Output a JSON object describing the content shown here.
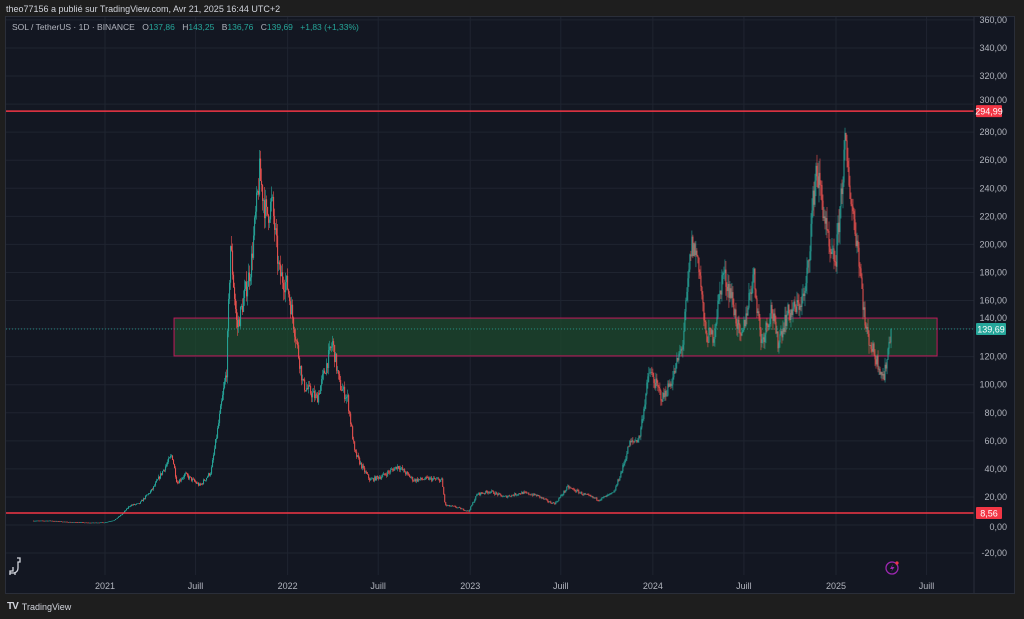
{
  "header": {
    "published": "theo77156 a publié sur TradingView.com, Avr 21, 2025 16:44 UTC+2"
  },
  "legend": {
    "symbol": "SOL / TetherUS · 1D · BINANCE",
    "o_label": "O",
    "o": "137,86",
    "h_label": "H",
    "h": "143,25",
    "b_label": "B",
    "b": "136,76",
    "c_label": "C",
    "c": "139,69",
    "change": "+1,83 (+1,33%)"
  },
  "brand": {
    "logo": "TV",
    "name": "TradingView"
  },
  "colors": {
    "up": "#26a69a",
    "down": "#ef5350",
    "level": "#f23645",
    "zone_fill": "#1e4a2e",
    "zone_border": "#c2185b",
    "bg": "#131722",
    "grid": "#1f2430"
  },
  "chart_data": {
    "type": "candlestick",
    "title": "SOL / TetherUS · 1D · BINANCE",
    "ylim": [
      -30,
      362
    ],
    "y_ticks": [
      -20,
      0,
      20,
      40,
      60,
      80,
      100,
      120,
      140,
      160,
      180,
      200,
      220,
      240,
      260,
      280,
      300,
      320,
      340,
      360
    ],
    "y_tick_labels": [
      "-20,00",
      "0,00",
      "20,00",
      "40,00",
      "60,00",
      "80,00",
      "100,00",
      "120,00",
      "140,00",
      "160,00",
      "180,00",
      "200,00",
      "220,00",
      "240,00",
      "260,00",
      "280,00",
      "300,00",
      "320,00",
      "340,00",
      "360,00"
    ],
    "x_ticks": [
      {
        "date": "2021-01-01",
        "label": "2021"
      },
      {
        "date": "2021-07-01",
        "label": "Juill"
      },
      {
        "date": "2022-01-01",
        "label": "2022"
      },
      {
        "date": "2022-07-01",
        "label": "Juill"
      },
      {
        "date": "2023-01-01",
        "label": "2023"
      },
      {
        "date": "2023-07-01",
        "label": "Juill"
      },
      {
        "date": "2024-01-01",
        "label": "2024"
      },
      {
        "date": "2024-07-01",
        "label": "Juill"
      },
      {
        "date": "2025-01-01",
        "label": "2025"
      },
      {
        "date": "2025-07-01",
        "label": "Juill"
      }
    ],
    "approx_close_keypoints": [
      [
        "2020-08-11",
        3
      ],
      [
        "2020-09-15",
        3
      ],
      [
        "2020-10-15",
        2.2
      ],
      [
        "2020-12-01",
        1.6
      ],
      [
        "2021-01-01",
        1.8
      ],
      [
        "2021-01-20",
        3.5
      ],
      [
        "2021-02-05",
        8
      ],
      [
        "2021-02-20",
        14
      ],
      [
        "2021-03-10",
        15
      ],
      [
        "2021-04-05",
        25
      ],
      [
        "2021-05-15",
        50
      ],
      [
        "2021-05-25",
        30
      ],
      [
        "2021-06-10",
        36
      ],
      [
        "2021-07-10",
        28
      ],
      [
        "2021-08-01",
        38
      ],
      [
        "2021-08-15",
        70
      ],
      [
        "2021-09-01",
        110
      ],
      [
        "2021-09-09",
        200
      ],
      [
        "2021-09-22",
        140
      ],
      [
        "2021-10-05",
        160
      ],
      [
        "2021-10-20",
        185
      ],
      [
        "2021-11-06",
        250
      ],
      [
        "2021-11-20",
        220
      ],
      [
        "2021-12-01",
        230
      ],
      [
        "2021-12-15",
        180
      ],
      [
        "2022-01-01",
        170
      ],
      [
        "2022-01-15",
        140
      ],
      [
        "2022-02-01",
        100
      ],
      [
        "2022-03-01",
        90
      ],
      [
        "2022-04-01",
        130
      ],
      [
        "2022-04-15",
        100
      ],
      [
        "2022-05-01",
        90
      ],
      [
        "2022-05-15",
        52
      ],
      [
        "2022-06-01",
        40
      ],
      [
        "2022-06-15",
        32
      ],
      [
        "2022-07-10",
        35
      ],
      [
        "2022-08-10",
        42
      ],
      [
        "2022-09-10",
        32
      ],
      [
        "2022-10-10",
        33
      ],
      [
        "2022-11-05",
        32
      ],
      [
        "2022-11-12",
        14
      ],
      [
        "2022-12-01",
        13
      ],
      [
        "2022-12-29",
        9.8
      ],
      [
        "2023-01-15",
        22
      ],
      [
        "2023-02-10",
        24
      ],
      [
        "2023-03-10",
        20
      ],
      [
        "2023-04-15",
        23
      ],
      [
        "2023-05-15",
        21
      ],
      [
        "2023-06-10",
        16
      ],
      [
        "2023-06-20",
        15.5
      ],
      [
        "2023-07-15",
        27
      ],
      [
        "2023-08-15",
        22
      ],
      [
        "2023-09-15",
        18
      ],
      [
        "2023-10-15",
        23
      ],
      [
        "2023-11-01",
        40
      ],
      [
        "2023-11-15",
        58
      ],
      [
        "2023-12-05",
        62
      ],
      [
        "2023-12-25",
        110
      ],
      [
        "2024-01-20",
        90
      ],
      [
        "2024-02-10",
        105
      ],
      [
        "2024-03-01",
        130
      ],
      [
        "2024-03-18",
        200
      ],
      [
        "2024-04-01",
        190
      ],
      [
        "2024-04-15",
        135
      ],
      [
        "2024-05-01",
        135
      ],
      [
        "2024-05-20",
        180
      ],
      [
        "2024-06-05",
        165
      ],
      [
        "2024-06-25",
        130
      ],
      [
        "2024-07-20",
        180
      ],
      [
        "2024-08-05",
        130
      ],
      [
        "2024-08-25",
        155
      ],
      [
        "2024-09-06",
        130
      ],
      [
        "2024-09-25",
        150
      ],
      [
        "2024-10-15",
        155
      ],
      [
        "2024-11-01",
        165
      ],
      [
        "2024-11-22",
        255
      ],
      [
        "2024-12-05",
        230
      ],
      [
        "2024-12-20",
        190
      ],
      [
        "2025-01-01",
        190
      ],
      [
        "2025-01-19",
        270
      ],
      [
        "2025-02-01",
        230
      ],
      [
        "2025-02-15",
        195
      ],
      [
        "2025-03-01",
        140
      ],
      [
        "2025-03-15",
        125
      ],
      [
        "2025-04-07",
        105
      ],
      [
        "2025-04-21",
        139.69
      ]
    ],
    "levels": [
      {
        "name": "resistance",
        "value": 294.99,
        "label": "294,99"
      },
      {
        "name": "support",
        "value": 8.56,
        "label": "8,56"
      }
    ],
    "zone": {
      "top": 147.5,
      "bottom": 120.5,
      "from": "2021-05-19",
      "to": "2025-07-22"
    },
    "last_price": {
      "value": 139.69,
      "label": "139,69"
    }
  }
}
